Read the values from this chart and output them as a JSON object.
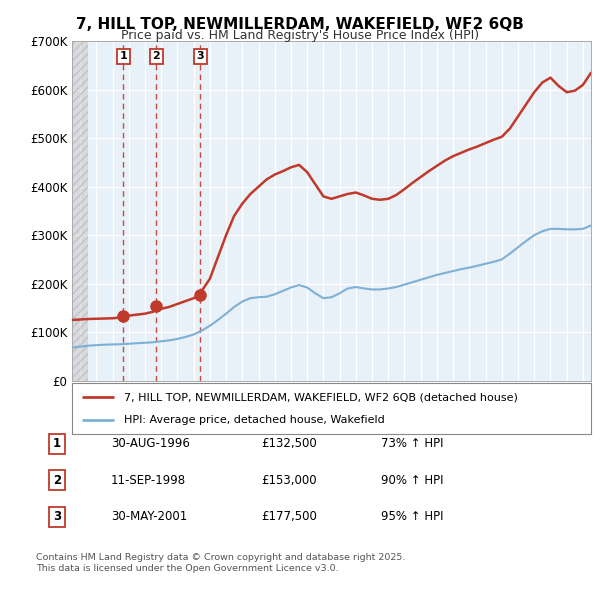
{
  "title_line1": "7, HILL TOP, NEWMILLERDAM, WAKEFIELD, WF2 6QB",
  "title_line2": "Price paid vs. HM Land Registry's House Price Index (HPI)",
  "legend_line1": "7, HILL TOP, NEWMILLERDAM, WAKEFIELD, WF2 6QB (detached house)",
  "legend_line2": "HPI: Average price, detached house, Wakefield",
  "footer_line1": "Contains HM Land Registry data © Crown copyright and database right 2025.",
  "footer_line2": "This data is licensed under the Open Government Licence v3.0.",
  "transactions": [
    {
      "num": 1,
      "date": "30-AUG-1996",
      "price": "£132,500",
      "hpi": "73% ↑ HPI",
      "year": 1996.66,
      "price_val": 132500
    },
    {
      "num": 2,
      "date": "11-SEP-1998",
      "price": "£153,000",
      "hpi": "90% ↑ HPI",
      "year": 1998.7,
      "price_val": 153000
    },
    {
      "num": 3,
      "date": "30-MAY-2001",
      "price": "£177,500",
      "hpi": "95% ↑ HPI",
      "year": 2001.41,
      "price_val": 177500
    }
  ],
  "hpi_color": "#7eb0d5",
  "price_color": "#c0392b",
  "background_color": "#ffffff",
  "plot_bg_color": "#e8f0f8",
  "grid_color": "#ffffff",
  "ylim": [
    0,
    700000
  ],
  "yticks": [
    0,
    100000,
    200000,
    300000,
    400000,
    500000,
    600000,
    700000
  ],
  "ytick_labels": [
    "£0",
    "£100K",
    "£200K",
    "£300K",
    "£400K",
    "£500K",
    "£600K",
    "£700K"
  ],
  "xlim_start": 1993.5,
  "xlim_end": 2025.5,
  "hatch_end": 1994.5,
  "hpi_data": [
    [
      1993.5,
      68000
    ],
    [
      1994,
      70000
    ],
    [
      1994.5,
      72000
    ],
    [
      1995,
      73000
    ],
    [
      1995.5,
      74000
    ],
    [
      1996,
      74500
    ],
    [
      1996.5,
      75000
    ],
    [
      1997,
      76000
    ],
    [
      1997.5,
      77000
    ],
    [
      1998,
      78000
    ],
    [
      1998.5,
      79000
    ],
    [
      1999,
      81000
    ],
    [
      1999.5,
      83000
    ],
    [
      2000,
      86000
    ],
    [
      2000.5,
      90000
    ],
    [
      2001,
      95000
    ],
    [
      2001.5,
      103000
    ],
    [
      2002,
      113000
    ],
    [
      2002.5,
      125000
    ],
    [
      2003,
      138000
    ],
    [
      2003.5,
      152000
    ],
    [
      2004,
      163000
    ],
    [
      2004.5,
      170000
    ],
    [
      2005,
      172000
    ],
    [
      2005.5,
      173000
    ],
    [
      2006,
      178000
    ],
    [
      2006.5,
      185000
    ],
    [
      2007,
      192000
    ],
    [
      2007.5,
      197000
    ],
    [
      2008,
      192000
    ],
    [
      2008.5,
      180000
    ],
    [
      2009,
      170000
    ],
    [
      2009.5,
      172000
    ],
    [
      2010,
      180000
    ],
    [
      2010.5,
      190000
    ],
    [
      2011,
      193000
    ],
    [
      2011.5,
      190000
    ],
    [
      2012,
      188000
    ],
    [
      2012.5,
      188000
    ],
    [
      2013,
      190000
    ],
    [
      2013.5,
      193000
    ],
    [
      2014,
      198000
    ],
    [
      2014.5,
      203000
    ],
    [
      2015,
      208000
    ],
    [
      2015.5,
      213000
    ],
    [
      2016,
      218000
    ],
    [
      2016.5,
      222000
    ],
    [
      2017,
      226000
    ],
    [
      2017.5,
      230000
    ],
    [
      2018,
      233000
    ],
    [
      2018.5,
      237000
    ],
    [
      2019,
      241000
    ],
    [
      2019.5,
      245000
    ],
    [
      2020,
      250000
    ],
    [
      2020.5,
      262000
    ],
    [
      2021,
      275000
    ],
    [
      2021.5,
      288000
    ],
    [
      2022,
      300000
    ],
    [
      2022.5,
      308000
    ],
    [
      2023,
      313000
    ],
    [
      2023.5,
      313000
    ],
    [
      2024,
      312000
    ],
    [
      2024.5,
      312000
    ],
    [
      2025,
      313000
    ],
    [
      2025.5,
      320000
    ]
  ],
  "price_data": [
    [
      1993.5,
      125000
    ],
    [
      1994,
      126000
    ],
    [
      1994.5,
      127000
    ],
    [
      1995,
      127500
    ],
    [
      1995.5,
      128000
    ],
    [
      1996,
      128500
    ],
    [
      1996.5,
      130000
    ],
    [
      1996.66,
      132500
    ],
    [
      1997,
      134000
    ],
    [
      1997.5,
      136000
    ],
    [
      1998,
      138000
    ],
    [
      1998.5,
      142000
    ],
    [
      1998.7,
      153000
    ],
    [
      1999,
      148000
    ],
    [
      1999.5,
      152000
    ],
    [
      2000,
      158000
    ],
    [
      2000.5,
      164000
    ],
    [
      2001,
      170000
    ],
    [
      2001.41,
      177500
    ],
    [
      2001.5,
      185000
    ],
    [
      2002,
      210000
    ],
    [
      2002.5,
      255000
    ],
    [
      2003,
      300000
    ],
    [
      2003.5,
      340000
    ],
    [
      2004,
      365000
    ],
    [
      2004.5,
      385000
    ],
    [
      2005,
      400000
    ],
    [
      2005.5,
      415000
    ],
    [
      2006,
      425000
    ],
    [
      2006.5,
      432000
    ],
    [
      2007,
      440000
    ],
    [
      2007.5,
      445000
    ],
    [
      2008,
      430000
    ],
    [
      2008.5,
      405000
    ],
    [
      2009,
      380000
    ],
    [
      2009.5,
      375000
    ],
    [
      2010,
      380000
    ],
    [
      2010.5,
      385000
    ],
    [
      2011,
      388000
    ],
    [
      2011.5,
      382000
    ],
    [
      2012,
      375000
    ],
    [
      2012.5,
      373000
    ],
    [
      2013,
      375000
    ],
    [
      2013.5,
      383000
    ],
    [
      2014,
      395000
    ],
    [
      2014.5,
      408000
    ],
    [
      2015,
      420000
    ],
    [
      2015.5,
      432000
    ],
    [
      2016,
      443000
    ],
    [
      2016.5,
      454000
    ],
    [
      2017,
      463000
    ],
    [
      2017.5,
      470000
    ],
    [
      2018,
      477000
    ],
    [
      2018.5,
      483000
    ],
    [
      2019,
      490000
    ],
    [
      2019.5,
      497000
    ],
    [
      2020,
      503000
    ],
    [
      2020.5,
      520000
    ],
    [
      2021,
      545000
    ],
    [
      2021.5,
      570000
    ],
    [
      2022,
      595000
    ],
    [
      2022.5,
      615000
    ],
    [
      2023,
      625000
    ],
    [
      2023.5,
      608000
    ],
    [
      2024,
      595000
    ],
    [
      2024.5,
      598000
    ],
    [
      2025,
      610000
    ],
    [
      2025.5,
      635000
    ]
  ]
}
